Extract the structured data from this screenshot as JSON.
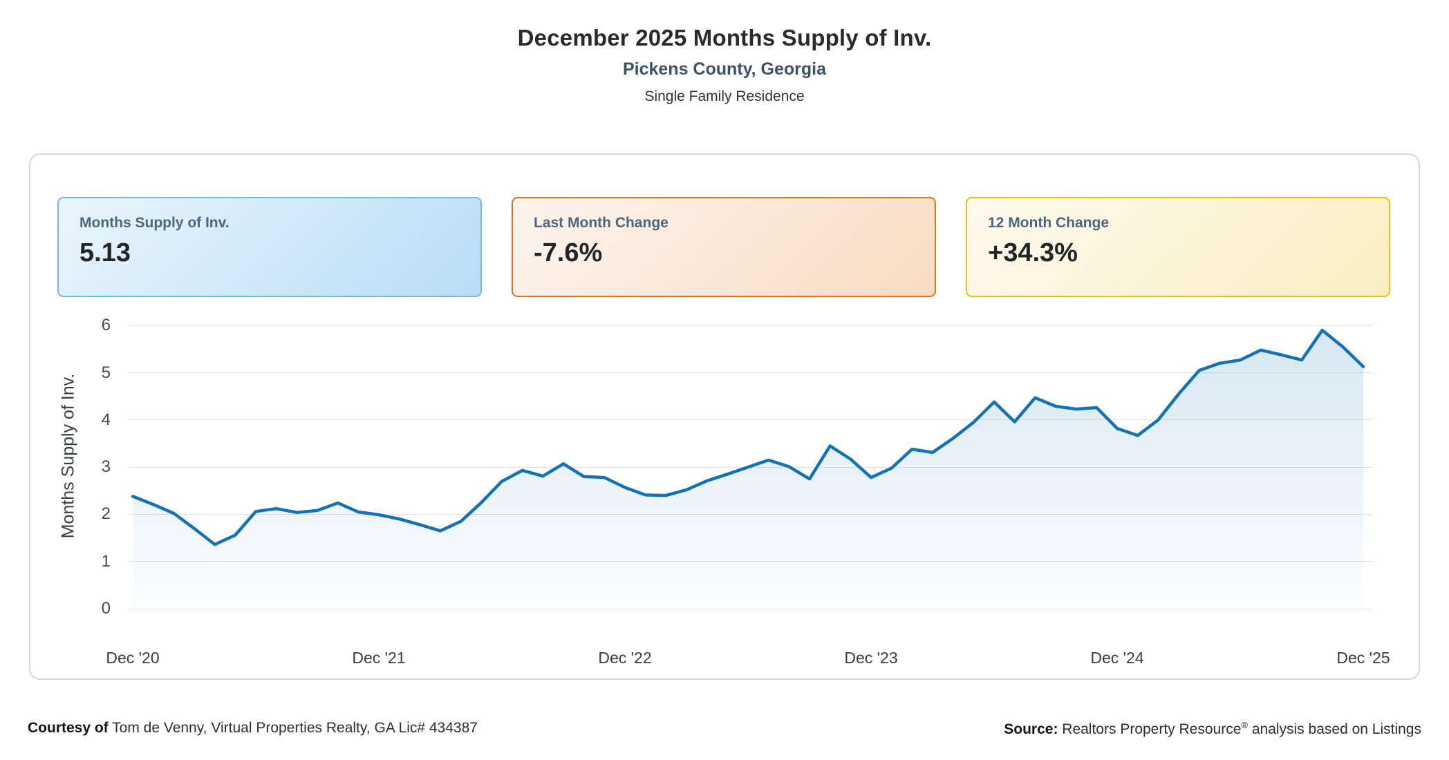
{
  "header": {
    "title": "December 2025 Months Supply of Inv.",
    "subtitle": "Pickens County, Georgia",
    "property_type": "Single Family Residence"
  },
  "stat_cards": [
    {
      "label": "Months Supply of Inv.",
      "value": "5.13",
      "border_color": "#6fb9e8",
      "bg_from": "#ebf5fc",
      "bg_to": "#b9ddf6"
    },
    {
      "label": "Last Month Change",
      "value": "-7.6%",
      "border_color": "#e2711d",
      "bg_from": "#fdf4ee",
      "bg_to": "#f8dcc3"
    },
    {
      "label": "12 Month Change",
      "value": "+34.3%",
      "border_color": "#e7c117",
      "bg_from": "#fefaef",
      "bg_to": "#faedc1"
    }
  ],
  "chart_data": {
    "type": "area",
    "title": "December 2025 Months Supply of Inv.",
    "xlabel": "",
    "ylabel": "Months Supply of Inv.",
    "ylim": [
      0,
      6
    ],
    "y_ticks": [
      0,
      1,
      2,
      3,
      4,
      5,
      6
    ],
    "grid": true,
    "legend": "none",
    "frequency": "monthly",
    "x_tick_labels": [
      "Dec '20",
      "Dec '21",
      "Dec '22",
      "Dec '23",
      "Dec '24",
      "Dec '25"
    ],
    "x_tick_positions": [
      0,
      12,
      24,
      36,
      48,
      60
    ],
    "x_range": [
      "Dec 2020",
      "Dec 2025"
    ],
    "series": [
      {
        "name": "Months Supply of Inv.",
        "values": [
          2.38,
          2.21,
          2.02,
          1.7,
          1.36,
          1.56,
          2.06,
          2.12,
          2.04,
          2.08,
          2.24,
          2.05,
          1.99,
          1.9,
          1.78,
          1.65,
          1.85,
          2.25,
          2.7,
          2.93,
          2.81,
          3.07,
          2.8,
          2.78,
          2.57,
          2.41,
          2.4,
          2.52,
          2.71,
          2.85,
          3.0,
          3.15,
          3.01,
          2.75,
          3.45,
          3.17,
          2.78,
          2.98,
          3.38,
          3.31,
          3.61,
          3.95,
          4.38,
          3.96,
          4.47,
          4.29,
          4.23,
          4.26,
          3.82,
          3.67,
          4.0,
          4.55,
          5.05,
          5.2,
          5.27,
          5.48,
          5.38,
          5.27,
          5.9,
          5.55,
          5.13
        ]
      }
    ],
    "line_color": "#1272b8",
    "fill_from": "rgba(18,114,184,0.17)",
    "fill_to": "rgba(18,114,184,0.01)",
    "gridline_color": "#e3e3e5"
  },
  "footer": {
    "courtesy_bold": "Courtesy of",
    "courtesy_text": " Tom de Venny, Virtual Properties Realty, GA Lic# 434387",
    "source_bold": "Source:",
    "source_text_pre": " Realtors Property Resource",
    "source_registered": "®",
    "source_text_post": " analysis based on Listings"
  }
}
